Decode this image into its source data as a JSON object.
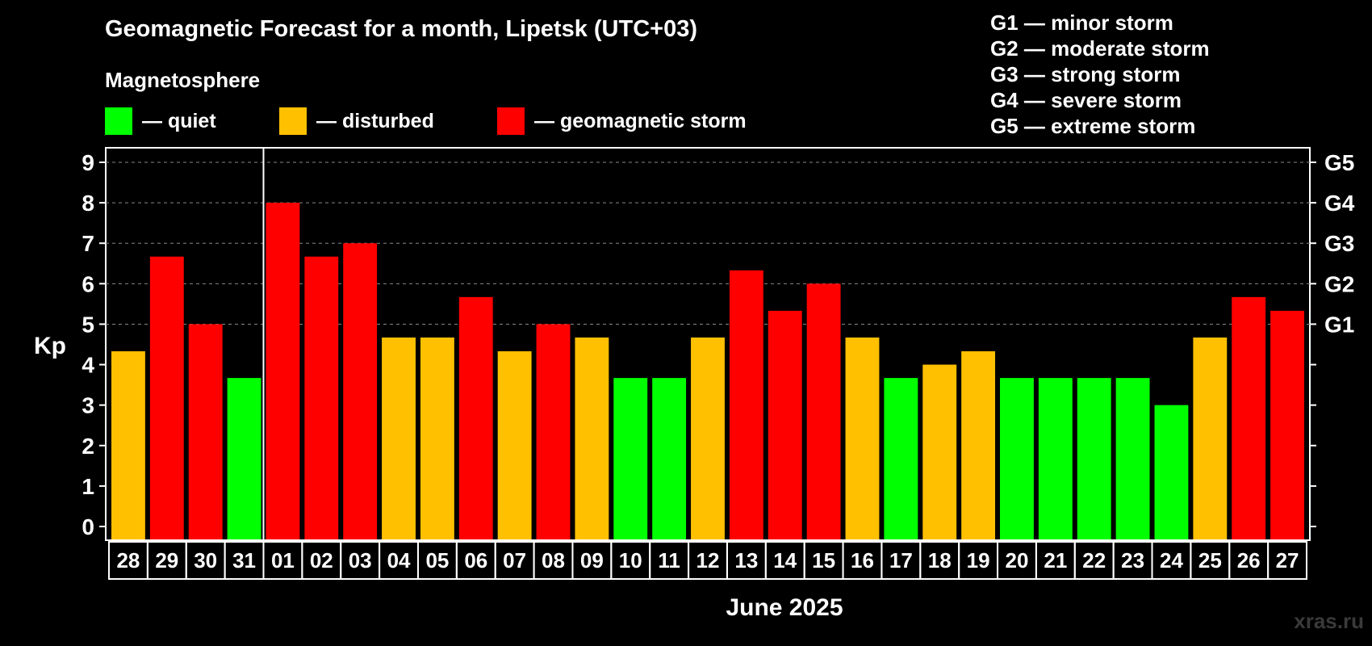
{
  "title": "Geomagnetic Forecast for a month, Lipetsk (UTC+03)",
  "subtitle": "Magnetosphere",
  "legend": [
    {
      "label": "— quiet",
      "color": "#00ff00"
    },
    {
      "label": "— disturbed",
      "color": "#ffc000"
    },
    {
      "label": "— geomagnetic storm",
      "color": "#ff0000"
    }
  ],
  "storm_legend": [
    "G1 — minor storm",
    "G2 — moderate storm",
    "G3 — strong storm",
    "G4 — severe storm",
    "G5 — extreme storm"
  ],
  "month_label": "June 2025",
  "watermark": "xras.ru",
  "chart_data": {
    "type": "bar",
    "title": "Geomagnetic Forecast for a month, Lipetsk (UTC+03)",
    "ylabel": "Kp",
    "xlabel": "June 2025",
    "ylim": [
      0,
      9
    ],
    "yticks": [
      "0",
      "1",
      "2",
      "3",
      "4",
      "5",
      "6",
      "7",
      "8",
      "9"
    ],
    "right_axis": {
      "5": "G1",
      "6": "G2",
      "7": "G3",
      "8": "G4",
      "9": "G5"
    },
    "grid": "dashed horizontal from 5 to 9",
    "categories": [
      "28",
      "29",
      "30",
      "31",
      "01",
      "02",
      "03",
      "04",
      "05",
      "06",
      "07",
      "08",
      "09",
      "10",
      "11",
      "12",
      "13",
      "14",
      "15",
      "16",
      "17",
      "18",
      "19",
      "20",
      "21",
      "22",
      "23",
      "24",
      "25",
      "26",
      "27"
    ],
    "values": [
      4.33,
      6.67,
      5.0,
      3.67,
      8.0,
      6.67,
      7.0,
      4.67,
      4.67,
      5.67,
      4.33,
      5.0,
      4.67,
      3.67,
      3.67,
      4.67,
      6.33,
      5.33,
      6.0,
      4.67,
      3.67,
      4.0,
      4.33,
      3.67,
      3.67,
      3.67,
      3.67,
      3.0,
      4.67,
      5.67,
      5.33
    ],
    "levels": [
      "disturbed",
      "storm",
      "storm",
      "quiet",
      "storm",
      "storm",
      "storm",
      "disturbed",
      "disturbed",
      "storm",
      "disturbed",
      "storm",
      "disturbed",
      "quiet",
      "quiet",
      "disturbed",
      "storm",
      "storm",
      "storm",
      "disturbed",
      "quiet",
      "disturbed",
      "disturbed",
      "quiet",
      "quiet",
      "quiet",
      "quiet",
      "quiet",
      "disturbed",
      "storm",
      "storm"
    ],
    "level_colors": {
      "quiet": "#00ff00",
      "disturbed": "#ffc000",
      "storm": "#ff0000"
    },
    "month_divider_after": "31"
  }
}
